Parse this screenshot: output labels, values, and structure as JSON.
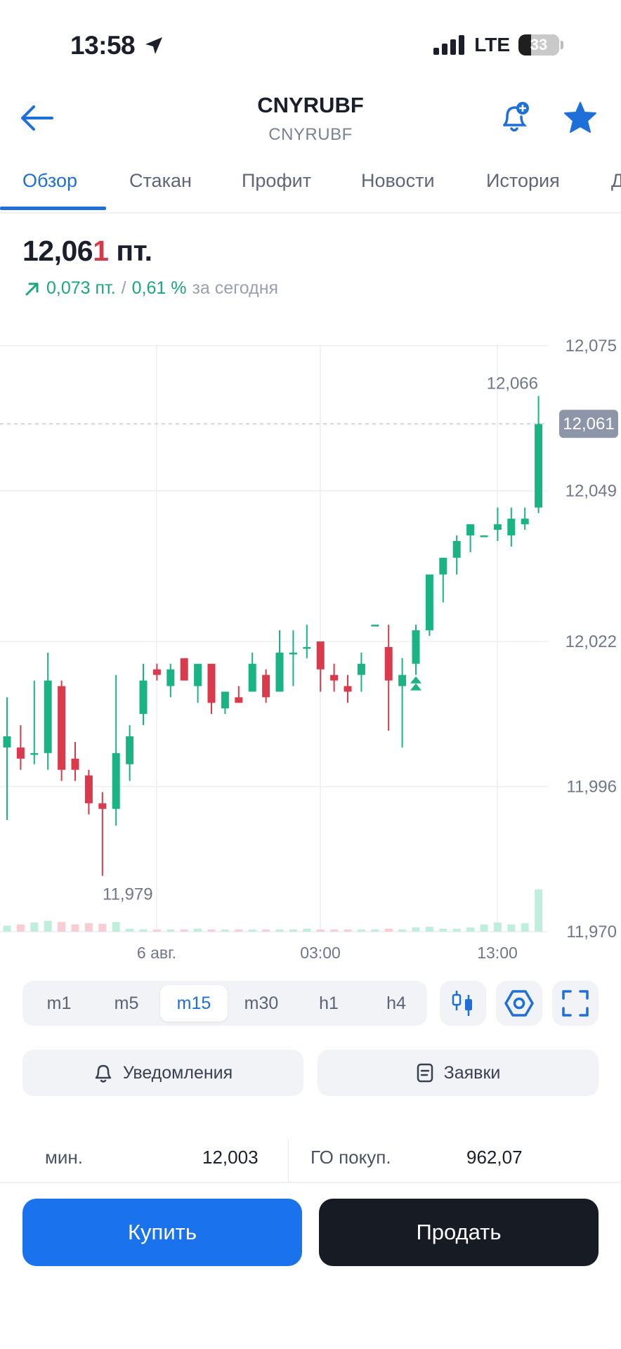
{
  "status_bar": {
    "time": "13:58",
    "network": "LTE",
    "battery": "33"
  },
  "header": {
    "title": "CNYRUBF",
    "subtitle": "CNYRUBF",
    "back_icon": "arrow-left-icon",
    "bell_icon": "bell-plus-icon",
    "star_icon": "star-icon"
  },
  "tabs": [
    {
      "label": "Обзор",
      "active": true
    },
    {
      "label": "Стакан"
    },
    {
      "label": "Профит"
    },
    {
      "label": "Новости"
    },
    {
      "label": "История"
    },
    {
      "label": "Д"
    }
  ],
  "quote": {
    "price_main": "12,06",
    "price_last_digit": "1",
    "price_unit": "пт.",
    "change_abs": "0,073 пт.",
    "change_sep": "/",
    "change_pct": "0,61 %",
    "change_period": "за сегодня"
  },
  "chart_data": {
    "type": "candlestick",
    "y_ticks": [
      "12,075",
      "12,049",
      "12,022",
      "11,996",
      "11,970"
    ],
    "y_range": [
      11.97,
      12.075
    ],
    "x_labels": [
      "6 авг.",
      "03:00",
      "13:00"
    ],
    "current_price_label": "12,061",
    "high_label": "12,066",
    "low_label": "11,979",
    "colors": {
      "up": "#1ab384",
      "down": "#d93a4c"
    },
    "candles": [
      {
        "o": 12.003,
        "h": 12.012,
        "l": 11.99,
        "c": 12.005
      },
      {
        "o": 12.003,
        "h": 12.007,
        "l": 11.999,
        "c": 12.001
      },
      {
        "o": 12.002,
        "h": 12.015,
        "l": 12.0,
        "c": 12.002
      },
      {
        "o": 12.002,
        "h": 12.02,
        "l": 11.999,
        "c": 12.015
      },
      {
        "o": 12.014,
        "h": 12.015,
        "l": 11.997,
        "c": 11.999
      },
      {
        "o": 12.001,
        "h": 12.004,
        "l": 11.997,
        "c": 11.999
      },
      {
        "o": 11.998,
        "h": 11.999,
        "l": 11.991,
        "c": 11.993
      },
      {
        "o": 11.993,
        "h": 11.995,
        "l": 11.98,
        "c": 11.992
      },
      {
        "o": 11.992,
        "h": 12.016,
        "l": 11.989,
        "c": 12.002
      },
      {
        "o": 12.0,
        "h": 12.007,
        "l": 11.997,
        "c": 12.005
      },
      {
        "o": 12.009,
        "h": 12.018,
        "l": 12.007,
        "c": 12.015
      },
      {
        "o": 12.017,
        "h": 12.018,
        "l": 12.015,
        "c": 12.016
      },
      {
        "o": 12.014,
        "h": 12.018,
        "l": 12.012,
        "c": 12.017
      },
      {
        "o": 12.019,
        "h": 12.019,
        "l": 12.015,
        "c": 12.015
      },
      {
        "o": 12.014,
        "h": 12.017,
        "l": 12.011,
        "c": 12.018
      },
      {
        "o": 12.018,
        "h": 12.018,
        "l": 12.009,
        "c": 12.011
      },
      {
        "o": 12.01,
        "h": 12.013,
        "l": 12.009,
        "c": 12.013
      },
      {
        "o": 12.012,
        "h": 12.014,
        "l": 12.011,
        "c": 12.011
      },
      {
        "o": 12.013,
        "h": 12.02,
        "l": 12.014,
        "c": 12.018
      },
      {
        "o": 12.016,
        "h": 12.017,
        "l": 12.011,
        "c": 12.012
      },
      {
        "o": 12.013,
        "h": 12.024,
        "l": 12.014,
        "c": 12.02
      },
      {
        "o": 12.02,
        "h": 12.024,
        "l": 12.014,
        "c": 12.02
      },
      {
        "o": 12.021,
        "h": 12.025,
        "l": 12.019,
        "c": 12.021
      },
      {
        "o": 12.022,
        "h": 12.022,
        "l": 12.013,
        "c": 12.017
      },
      {
        "o": 12.016,
        "h": 12.018,
        "l": 12.013,
        "c": 12.015
      },
      {
        "o": 12.014,
        "h": 12.016,
        "l": 12.011,
        "c": 12.013
      },
      {
        "o": 12.016,
        "h": 12.02,
        "l": 12.013,
        "c": 12.018
      },
      {
        "o": 12.025,
        "h": 12.025,
        "l": 12.025,
        "c": 12.025
      },
      {
        "o": 12.021,
        "h": 12.025,
        "l": 12.006,
        "c": 12.015
      },
      {
        "o": 12.014,
        "h": 12.019,
        "l": 12.003,
        "c": 12.016
      },
      {
        "o": 12.018,
        "h": 12.025,
        "l": 12.016,
        "c": 12.024
      },
      {
        "o": 12.024,
        "h": 12.034,
        "l": 12.023,
        "c": 12.034
      },
      {
        "o": 12.034,
        "h": 12.037,
        "l": 12.029,
        "c": 12.037
      },
      {
        "o": 12.037,
        "h": 12.041,
        "l": 12.034,
        "c": 12.04
      },
      {
        "o": 12.041,
        "h": 12.043,
        "l": 12.038,
        "c": 12.043
      },
      {
        "o": 12.041,
        "h": 12.041,
        "l": 12.041,
        "c": 12.041
      },
      {
        "o": 12.042,
        "h": 12.046,
        "l": 12.04,
        "c": 12.043
      },
      {
        "o": 12.041,
        "h": 12.046,
        "l": 12.039,
        "c": 12.044
      },
      {
        "o": 12.043,
        "h": 12.046,
        "l": 12.042,
        "c": 12.044
      },
      {
        "o": 12.046,
        "h": 12.066,
        "l": 12.045,
        "c": 12.061
      }
    ],
    "volumes": [
      0.1,
      0.12,
      0.15,
      0.18,
      0.16,
      0.12,
      0.14,
      0.13,
      0.16,
      0.05,
      0.03,
      0.03,
      0.03,
      0.03,
      0.05,
      0.03,
      0.03,
      0.03,
      0.03,
      0.03,
      0.03,
      0.03,
      0.05,
      0.03,
      0.03,
      0.03,
      0.03,
      0.03,
      0.05,
      0.03,
      0.07,
      0.08,
      0.05,
      0.05,
      0.07,
      0.12,
      0.15,
      0.12,
      0.14,
      0.7
    ]
  },
  "timeframes": [
    {
      "label": "m1"
    },
    {
      "label": "m5"
    },
    {
      "label": "m15",
      "active": true
    },
    {
      "label": "m30"
    },
    {
      "label": "h1"
    },
    {
      "label": "h4"
    }
  ],
  "tools": {
    "candles_icon": "candlestick-icon",
    "indicators_icon": "hexagon-icon",
    "fullscreen_icon": "fullscreen-icon"
  },
  "actions": {
    "notifications": "Уведомления",
    "orders": "Заявки"
  },
  "stats": {
    "min_label": "мин.",
    "min_value": "12,003",
    "margin_label": "ГО покуп.",
    "margin_value": "962,07"
  },
  "trade": {
    "buy": "Купить",
    "sell": "Продать"
  }
}
